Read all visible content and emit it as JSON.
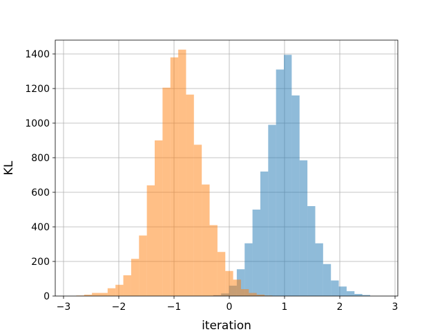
{
  "chart_data": {
    "type": "histogram",
    "title": "",
    "xlabel": "iteration",
    "ylabel": "KL",
    "xlim": [
      -3.15,
      3.05
    ],
    "ylim": [
      0,
      1480
    ],
    "xticks": [
      -3,
      -2,
      -1,
      0,
      1,
      2,
      3
    ],
    "xtick_labels": [
      "−3",
      "−2",
      "−1",
      "0",
      "1",
      "2",
      "3"
    ],
    "yticks": [
      0,
      200,
      400,
      600,
      800,
      1000,
      1200,
      1400
    ],
    "ytick_labels": [
      "0",
      "200",
      "400",
      "600",
      "800",
      "1000",
      "1200",
      "1400"
    ],
    "grid": true,
    "series": [
      {
        "color": "#1f77b4",
        "opacity": 0.5,
        "bin_start": -0.29,
        "bin_width": 0.142,
        "counts": [
          5,
          15,
          60,
          155,
          305,
          500,
          720,
          990,
          1310,
          1395,
          1160,
          785,
          520,
          305,
          185,
          90,
          55,
          28,
          12,
          6
        ]
      },
      {
        "color": "#ff7f0e",
        "opacity": 0.5,
        "bin_start": -2.77,
        "bin_width": 0.142,
        "counts": [
          3,
          8,
          18,
          18,
          45,
          65,
          120,
          215,
          350,
          640,
          900,
          1205,
          1380,
          1425,
          1165,
          875,
          645,
          410,
          255,
          145,
          95,
          40,
          18,
          8,
          3
        ]
      }
    ]
  }
}
